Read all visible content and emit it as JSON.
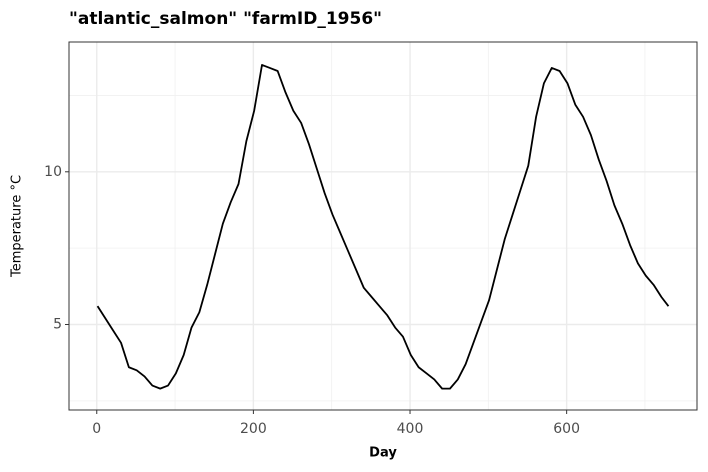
{
  "chart_data": {
    "type": "line",
    "title": "\"atlantic_salmon\" \"farmID_1956\"",
    "xlabel": "Day",
    "ylabel": "Temperature °C",
    "x": [
      1,
      11,
      21,
      31,
      41,
      51,
      61,
      71,
      81,
      91,
      101,
      111,
      121,
      131,
      141,
      151,
      161,
      171,
      181,
      191,
      201,
      211,
      221,
      231,
      241,
      251,
      261,
      271,
      281,
      291,
      301,
      311,
      321,
      331,
      341,
      351,
      361,
      371,
      381,
      391,
      401,
      411,
      421,
      431,
      441,
      451,
      461,
      471,
      481,
      491,
      501,
      511,
      521,
      531,
      541,
      551,
      561,
      571,
      581,
      591,
      601,
      611,
      621,
      631,
      641,
      651,
      661,
      671,
      681,
      691,
      701,
      711,
      721,
      730
    ],
    "values": [
      5.6,
      5.2,
      4.8,
      4.4,
      3.6,
      3.5,
      3.3,
      3.0,
      2.9,
      3.0,
      3.4,
      4.0,
      4.9,
      5.4,
      6.3,
      7.3,
      8.3,
      9.0,
      9.6,
      11.0,
      12.0,
      13.5,
      13.4,
      13.3,
      12.6,
      12.0,
      11.6,
      10.9,
      10.1,
      9.3,
      8.6,
      8.0,
      7.4,
      6.8,
      6.2,
      5.9,
      5.6,
      5.3,
      4.9,
      4.6,
      4.0,
      3.6,
      3.4,
      3.2,
      2.9,
      2.9,
      3.2,
      3.7,
      4.4,
      5.1,
      5.8,
      6.8,
      7.8,
      8.6,
      9.4,
      10.2,
      11.8,
      12.9,
      13.4,
      13.3,
      12.9,
      12.2,
      11.8,
      11.2,
      10.4,
      9.7,
      8.9,
      8.3,
      7.6,
      7.0,
      6.6,
      6.3,
      5.9,
      5.6
    ],
    "color": "#000000",
    "xlim": [
      -35.45,
      766.45
    ],
    "ylim": [
      2.2,
      14.25
    ],
    "xticks": [
      0,
      200,
      400,
      600
    ],
    "yticks": [
      5,
      10
    ],
    "xminor": [
      100,
      300,
      500,
      700
    ],
    "yminor": [
      2.5,
      7.5,
      12.5
    ],
    "grid": true
  }
}
